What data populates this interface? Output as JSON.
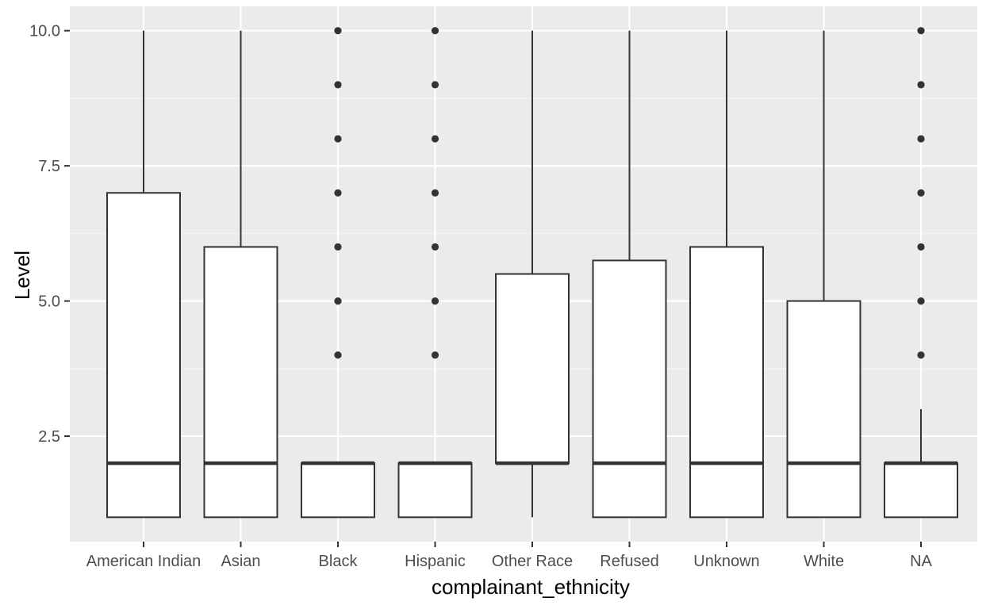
{
  "chart_data": {
    "type": "boxplot",
    "xlabel": "complainant_ethnicity",
    "ylabel": "Level",
    "ylim": [
      0.55,
      10.45
    ],
    "yticks": [
      2.5,
      5.0,
      7.5,
      10.0
    ],
    "ytick_labels": [
      "2.5",
      "5.0",
      "7.5",
      "10.0"
    ],
    "grid": true,
    "legend": "none",
    "colors": {
      "panel_background": "#ebebeb",
      "grid_major": "#ffffff",
      "grid_minor": "#f5f5f5",
      "box_fill": "#ffffff",
      "box_stroke": "#333333",
      "outlier": "#333333"
    },
    "categories": [
      "American Indian",
      "Asian",
      "Black",
      "Hispanic",
      "Other Race",
      "Refused",
      "Unknown",
      "White",
      "NA"
    ],
    "boxes": [
      {
        "category": "American Indian",
        "whisker_low": 1,
        "q1": 1,
        "median": 2,
        "q3": 7,
        "whisker_high": 10,
        "outliers": []
      },
      {
        "category": "Asian",
        "whisker_low": 1,
        "q1": 1,
        "median": 2,
        "q3": 6,
        "whisker_high": 10,
        "outliers": []
      },
      {
        "category": "Black",
        "whisker_low": 1,
        "q1": 1,
        "median": 2,
        "q3": 2,
        "whisker_high": 2,
        "outliers": [
          4,
          5,
          6,
          7,
          8,
          9,
          10
        ]
      },
      {
        "category": "Hispanic",
        "whisker_low": 1,
        "q1": 1,
        "median": 2,
        "q3": 2,
        "whisker_high": 2,
        "outliers": [
          4,
          5,
          6,
          7,
          8,
          9,
          10
        ]
      },
      {
        "category": "Other Race",
        "whisker_low": 1,
        "q1": 2,
        "median": 2,
        "q3": 5.5,
        "whisker_high": 10,
        "outliers": []
      },
      {
        "category": "Refused",
        "whisker_low": 1,
        "q1": 1,
        "median": 2,
        "q3": 5.75,
        "whisker_high": 10,
        "outliers": []
      },
      {
        "category": "Unknown",
        "whisker_low": 1,
        "q1": 1,
        "median": 2,
        "q3": 6,
        "whisker_high": 10,
        "outliers": []
      },
      {
        "category": "White",
        "whisker_low": 1,
        "q1": 1,
        "median": 2,
        "q3": 5,
        "whisker_high": 10,
        "outliers": []
      },
      {
        "category": "NA",
        "whisker_low": 1,
        "q1": 1,
        "median": 2,
        "q3": 2,
        "whisker_high": 3,
        "outliers": [
          4,
          5,
          6,
          7,
          8,
          9,
          10
        ]
      }
    ]
  }
}
